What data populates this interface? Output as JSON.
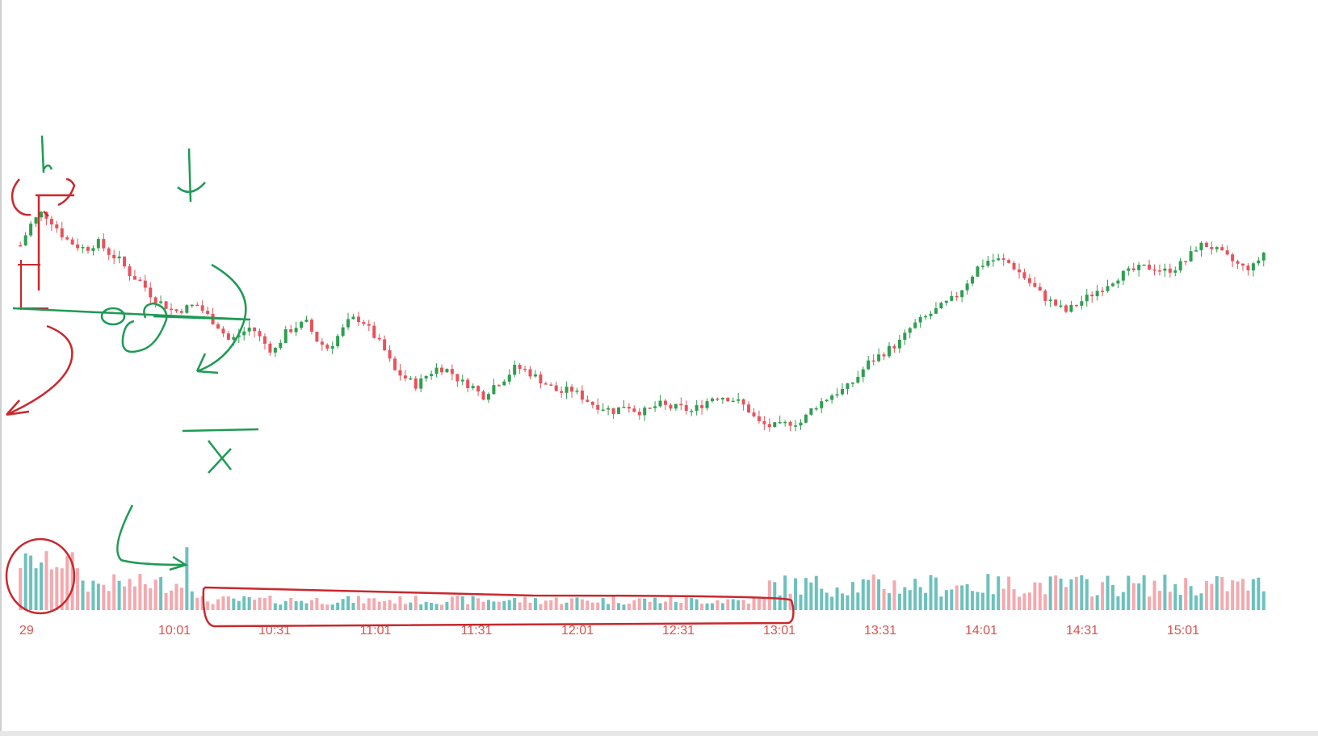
{
  "chart_data": {
    "type": "candlestick",
    "title": "",
    "xlabel": "",
    "ylabel": "",
    "x_tick_labels": [
      "29",
      "10:01",
      "10:31",
      "11:01",
      "11:31",
      "12:01",
      "12:31",
      "13:01",
      "13:31",
      "14:01",
      "14:31",
      "15:01"
    ],
    "colors": {
      "up": "#2e9e4f",
      "down": "#e8525a",
      "volume_up": "#6cc1bd",
      "volume_down": "#f4a9ae",
      "tick_text": "#d9534f",
      "annotation_red": "#c9282d",
      "annotation_green": "#1e9a55"
    },
    "price_path": [
      [
        0,
        86
      ],
      [
        1,
        92
      ],
      [
        2,
        95
      ],
      [
        3,
        92
      ],
      [
        4,
        88
      ],
      [
        5,
        86
      ],
      [
        6,
        85
      ],
      [
        7,
        87
      ],
      [
        8,
        84
      ],
      [
        9,
        82
      ],
      [
        10,
        78
      ],
      [
        11,
        76
      ],
      [
        12,
        72
      ],
      [
        13,
        70
      ],
      [
        14,
        68
      ],
      [
        15,
        69
      ],
      [
        16,
        70
      ],
      [
        17,
        67
      ],
      [
        18,
        64
      ],
      [
        19,
        60
      ],
      [
        20,
        62
      ],
      [
        21,
        64
      ],
      [
        22,
        60
      ],
      [
        23,
        57
      ],
      [
        24,
        62
      ],
      [
        25,
        64
      ],
      [
        26,
        65
      ],
      [
        27,
        60
      ],
      [
        28,
        58
      ],
      [
        29,
        62
      ],
      [
        30,
        66
      ],
      [
        31,
        66
      ],
      [
        32,
        62
      ],
      [
        33,
        58
      ],
      [
        34,
        52
      ],
      [
        35,
        50
      ],
      [
        36,
        48
      ],
      [
        37,
        51
      ],
      [
        38,
        53
      ],
      [
        39,
        52
      ],
      [
        40,
        49
      ],
      [
        41,
        48
      ],
      [
        42,
        45
      ],
      [
        43,
        48
      ],
      [
        44,
        50
      ],
      [
        45,
        53
      ],
      [
        46,
        52
      ],
      [
        47,
        50
      ],
      [
        48,
        48
      ],
      [
        49,
        46
      ],
      [
        50,
        47
      ],
      [
        51,
        45
      ],
      [
        52,
        43
      ],
      [
        53,
        42
      ],
      [
        54,
        41
      ],
      [
        55,
        43
      ],
      [
        56,
        41
      ],
      [
        57,
        41
      ],
      [
        58,
        43
      ],
      [
        59,
        42
      ],
      [
        60,
        42
      ],
      [
        61,
        41
      ],
      [
        62,
        43
      ],
      [
        63,
        45
      ],
      [
        64,
        45
      ],
      [
        65,
        44
      ],
      [
        66,
        42
      ],
      [
        67,
        38
      ],
      [
        68,
        37
      ],
      [
        69,
        37
      ],
      [
        70,
        38
      ],
      [
        71,
        38
      ],
      [
        72,
        42
      ],
      [
        73,
        44
      ],
      [
        74,
        46
      ],
      [
        75,
        47
      ],
      [
        76,
        50
      ],
      [
        77,
        54
      ],
      [
        78,
        56
      ],
      [
        79,
        58
      ],
      [
        80,
        60
      ],
      [
        81,
        64
      ],
      [
        82,
        66
      ],
      [
        83,
        68
      ],
      [
        84,
        70
      ],
      [
        85,
        72
      ],
      [
        86,
        76
      ],
      [
        87,
        80
      ],
      [
        88,
        82
      ],
      [
        89,
        82
      ],
      [
        90,
        81
      ],
      [
        91,
        78
      ],
      [
        92,
        75
      ],
      [
        93,
        72
      ],
      [
        94,
        70
      ],
      [
        95,
        68
      ],
      [
        96,
        70
      ],
      [
        97,
        72
      ],
      [
        98,
        74
      ],
      [
        99,
        76
      ],
      [
        100,
        78
      ],
      [
        101,
        79
      ],
      [
        102,
        80
      ],
      [
        103,
        80
      ],
      [
        104,
        79
      ],
      [
        105,
        80
      ],
      [
        106,
        82
      ],
      [
        107,
        86
      ],
      [
        108,
        86
      ],
      [
        109,
        84
      ],
      [
        110,
        82
      ],
      [
        111,
        80
      ],
      [
        112,
        80
      ],
      [
        113,
        84
      ]
    ],
    "candles_count": 240,
    "volume": {
      "pattern": "high at open, low and flat 10:31–13:01, rising in afternoon"
    },
    "annotations": [
      {
        "kind": "circle",
        "color": "red",
        "target": "opening volume"
      },
      {
        "kind": "rectangle",
        "color": "red",
        "target": "low volume 10:31–13:01"
      },
      {
        "kind": "arrows_and_lines",
        "color": "green",
        "target": "morning decline and support"
      }
    ]
  }
}
